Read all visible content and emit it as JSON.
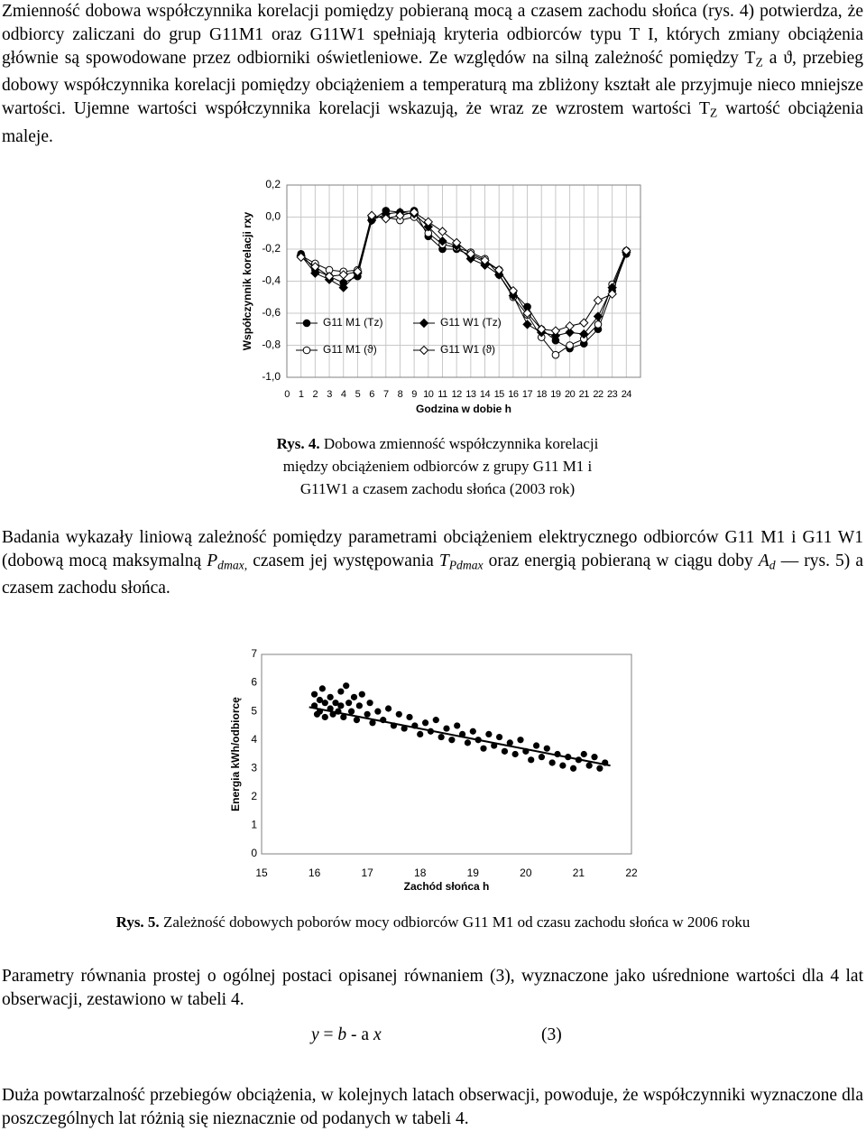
{
  "blocks": [
    {
      "runs": [
        {
          "text": "Zmienność dobowa współczynnika korelacji pomiędzy pobieraną mocą a czasem zachodu słońca (rys. 4) potwierdza, że odbiorcy zaliczani do grup G11M1 oraz G11W1 spełniają kryteria odbiorców typu T I, których zmiany obciążenia głównie są spowodowane przez odbiorniki oświetleniowe. Ze względów na silną zależność pomiędzy T"
        },
        {
          "text": "Z",
          "style": "sub"
        },
        {
          "text": " a ϑ, przebieg dobowy współczynnika korelacji pomiędzy obciążeniem a temperaturą ma zbliżony kształt ale przyjmuje nieco mniejsze wartości. Ujemne wartości współczynnika korelacji wskazują, że wraz ze wzrostem wartości T"
        },
        {
          "text": "Z",
          "style": "sub"
        },
        {
          "text": " wartość obciążenia maleje."
        }
      ]
    },
    {
      "runs": [
        {
          "text": "Rys. 4.",
          "style": "bold"
        },
        {
          "text": " Dobowa zmienność współczynnika korelacji między obciążeniem odbiorców z grupy G11 M1 i G11W1 a czasem zachodu słońca (2003 rok)"
        }
      ]
    },
    {
      "runs": [
        {
          "text": "Badania wykazały liniową zależność pomiędzy parametrami obciążeniem elektrycznego odbiorców G11 M1 i G11 W1 (dobową mocą maksymalną "
        },
        {
          "text": "P",
          "style": "italic"
        },
        {
          "text": "dmax,",
          "style": "italic-sub"
        },
        {
          "text": " czasem jej występowania "
        },
        {
          "text": "T",
          "style": "italic"
        },
        {
          "text": "Pdmax",
          "style": "italic-sub"
        },
        {
          "text": " oraz energią pobieraną w ciągu doby "
        },
        {
          "text": "A",
          "style": "italic"
        },
        {
          "text": "d",
          "style": "italic-sub"
        },
        {
          "text": " — rys. 5) a czasem zachodu słońca."
        }
      ]
    },
    {
      "runs": [
        {
          "text": "Rys. 5.",
          "style": "bold"
        },
        {
          "text": " Zależność dobowych poborów mocy odbiorców G11 M1 od czasu zachodu słońca w 2006 roku"
        }
      ]
    },
    {
      "runs": [
        {
          "text": "Parametry równania prostej o ogólnej postaci opisanej równaniem (3), wyznaczone jako uśrednione wartości dla 4 lat obserwacji, zestawiono w tabeli 4."
        }
      ]
    },
    {
      "runs": [
        {
          "text": "y",
          "style": "italic"
        },
        {
          "text": " = "
        },
        {
          "text": "b",
          "style": "italic"
        },
        {
          "text": " - a "
        },
        {
          "text": "x",
          "style": "italic"
        }
      ]
    },
    {
      "runs": [
        {
          "text": "Duża powtarzalność przebiegów obciążenia, w kolejnych latach obserwacji, powoduje, że współczynniki wyznaczone dla poszczególnych lat różnią się nieznacznie od podanych w tabeli 4."
        }
      ]
    }
  ],
  "equation_number": "(3)",
  "chart_data": [
    {
      "type": "line",
      "y_label": "Współczynnik korelacji  rxy",
      "x_label": "Godzina w dobie  h",
      "xlim": [
        0,
        25
      ],
      "xticks": [
        0,
        1,
        2,
        3,
        4,
        5,
        6,
        7,
        8,
        9,
        10,
        11,
        12,
        13,
        14,
        15,
        16,
        17,
        18,
        19,
        20,
        21,
        22,
        23,
        24
      ],
      "ylim": [
        -1.0,
        0.2
      ],
      "yticks": [
        {
          "value": 0.2,
          "label": "0,2"
        },
        {
          "value": 0.0,
          "label": "0,0"
        },
        {
          "value": -0.2,
          "label": "-0,2"
        },
        {
          "value": -0.4,
          "label": "-0,4"
        },
        {
          "value": -0.6,
          "label": "-0,6"
        },
        {
          "value": -0.8,
          "label": "-0,8"
        },
        {
          "value": -1.0,
          "label": "-1,0"
        }
      ],
      "grid": true,
      "legend": "lower left",
      "x": [
        1,
        2,
        3,
        4,
        5,
        6,
        7,
        8,
        9,
        10,
        11,
        12,
        13,
        14,
        15,
        16,
        17,
        18,
        19,
        20,
        21,
        22,
        23,
        24
      ],
      "series": [
        {
          "name": "G11 M1 (Tz)",
          "color": "#000000",
          "marker": "circle",
          "filled": true,
          "values": [
            -0.23,
            -0.33,
            -0.37,
            -0.41,
            -0.37,
            -0.02,
            0.04,
            0.03,
            0.04,
            -0.12,
            -0.2,
            -0.2,
            -0.24,
            -0.28,
            -0.33,
            -0.47,
            -0.56,
            -0.7,
            -0.77,
            -0.82,
            -0.79,
            -0.7,
            -0.46,
            -0.23
          ]
        },
        {
          "name": "G11 M1 (ϑ)",
          "color": "#000000",
          "marker": "circle",
          "filled": false,
          "values": [
            -0.24,
            -0.29,
            -0.33,
            -0.34,
            -0.33,
            0.0,
            0.0,
            -0.02,
            0.0,
            -0.1,
            -0.17,
            -0.19,
            -0.22,
            -0.26,
            -0.36,
            -0.5,
            -0.61,
            -0.75,
            -0.86,
            -0.8,
            -0.76,
            -0.67,
            -0.42,
            -0.21
          ]
        },
        {
          "name": "G11 W1 (Tz)",
          "color": "#000000",
          "marker": "diamond",
          "filled": true,
          "values": [
            -0.24,
            -0.35,
            -0.39,
            -0.44,
            -0.35,
            -0.02,
            0.02,
            0.03,
            0.02,
            -0.06,
            -0.15,
            -0.18,
            -0.26,
            -0.3,
            -0.36,
            -0.49,
            -0.67,
            -0.72,
            -0.74,
            -0.72,
            -0.73,
            -0.62,
            -0.44,
            -0.22
          ]
        },
        {
          "name": "G11 W1 (ϑ)",
          "color": "#000000",
          "marker": "diamond",
          "filled": false,
          "values": [
            -0.25,
            -0.31,
            -0.37,
            -0.36,
            -0.34,
            0.01,
            -0.01,
            0.01,
            0.03,
            -0.03,
            -0.09,
            -0.16,
            -0.23,
            -0.27,
            -0.33,
            -0.46,
            -0.6,
            -0.7,
            -0.71,
            -0.68,
            -0.66,
            -0.52,
            -0.48,
            -0.21
          ]
        }
      ]
    },
    {
      "type": "scatter",
      "y_label": "Energia  kWh/odbiorcę",
      "x_label": "Zachód słońca  h",
      "xlim": [
        15,
        22
      ],
      "xticks": [
        15,
        16,
        17,
        18,
        19,
        20,
        21,
        22
      ],
      "ylim": [
        0,
        7
      ],
      "yticks": [
        0,
        1,
        2,
        3,
        4,
        5,
        6,
        7
      ],
      "grid": false,
      "color": "#000000",
      "x": [
        16.0,
        16.0,
        16.05,
        16.1,
        16.1,
        16.15,
        16.2,
        16.2,
        16.3,
        16.3,
        16.35,
        16.4,
        16.45,
        16.5,
        16.5,
        16.55,
        16.6,
        16.65,
        16.7,
        16.75,
        16.8,
        16.85,
        16.9,
        17.0,
        17.05,
        17.1,
        17.2,
        17.3,
        17.4,
        17.5,
        17.6,
        17.7,
        17.8,
        17.9,
        18.0,
        18.1,
        18.2,
        18.3,
        18.4,
        18.5,
        18.6,
        18.7,
        18.8,
        18.9,
        19.0,
        19.1,
        19.2,
        19.3,
        19.4,
        19.5,
        19.6,
        19.7,
        19.8,
        19.9,
        20.0,
        20.1,
        20.2,
        20.3,
        20.4,
        20.5,
        20.6,
        20.7,
        20.8,
        20.9,
        21.0,
        21.1,
        21.2,
        21.3,
        21.4,
        21.5
      ],
      "values": [
        5.6,
        5.2,
        4.9,
        5.4,
        5.0,
        5.8,
        5.3,
        4.8,
        5.1,
        5.5,
        4.9,
        5.3,
        5.0,
        5.7,
        5.2,
        4.8,
        5.9,
        5.3,
        5.0,
        5.5,
        4.7,
        5.2,
        5.6,
        4.9,
        5.3,
        4.6,
        5.0,
        4.7,
        5.1,
        4.5,
        4.9,
        4.4,
        4.8,
        4.5,
        4.2,
        4.6,
        4.3,
        4.7,
        4.1,
        4.4,
        4.0,
        4.5,
        4.2,
        3.9,
        4.3,
        4.0,
        3.7,
        4.2,
        3.8,
        4.1,
        3.6,
        3.9,
        3.5,
        4.0,
        3.6,
        3.3,
        3.8,
        3.4,
        3.7,
        3.2,
        3.5,
        3.1,
        3.4,
        3.0,
        3.3,
        3.5,
        3.1,
        3.4,
        3.0,
        3.2
      ],
      "trendline": {
        "x": [
          15.9,
          21.6
        ],
        "y": [
          5.15,
          3.1
        ]
      }
    }
  ]
}
